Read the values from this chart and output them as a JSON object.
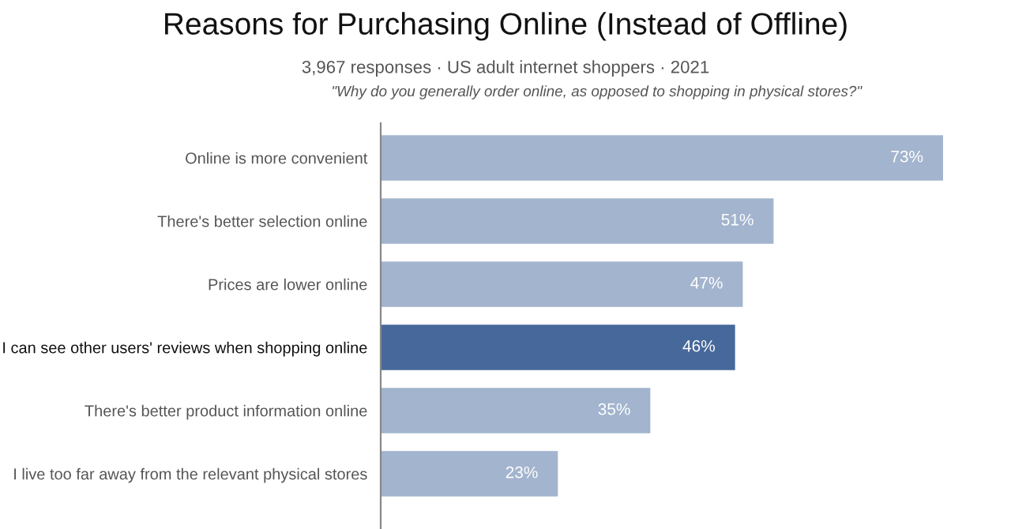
{
  "chart_data": {
    "type": "bar",
    "orientation": "horizontal",
    "title": "Reasons for Purchasing Online (Instead of Offline)",
    "subtitle": "3,967 responses · US adult internet shoppers · 2021",
    "annotations": [
      "\"Why do you generally order online, as opposed to shopping in physical stores?\""
    ],
    "categories": [
      "Online is more convenient",
      "There's better selection online",
      "Prices are lower online",
      "I can see other users' reviews when shopping online",
      "There's better product information online",
      "I live too far away from the relevant physical stores"
    ],
    "values": [
      73,
      51,
      47,
      46,
      35,
      23
    ],
    "colors": [
      "#a3b4ce",
      "#a3b4ce",
      "#a3b4ce",
      "#46689a",
      "#a3b4ce",
      "#a3b4ce"
    ],
    "value_labels": [
      "73%",
      "51%",
      "47%",
      "46%",
      "35%",
      "23%"
    ],
    "relative": false,
    "grid": false,
    "legend": false
  }
}
